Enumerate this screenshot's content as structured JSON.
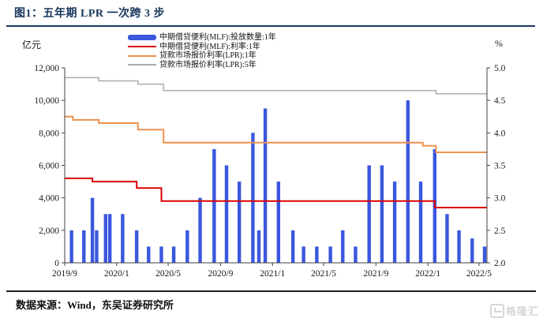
{
  "header": {
    "title": "图1：五年期 LPR 一次跨 3 步"
  },
  "footer": {
    "source": "数据来源：Wind，东吴证券研究所"
  },
  "watermark": {
    "text": "格隆汇",
    "icon": "glonghui-logo"
  },
  "colors": {
    "title_navy": "#17365d",
    "bar_blue": "#3a57de",
    "mlf_rate_red": "#dd0000",
    "lpr1y_orange": "#ee9150",
    "lpr5y_gray": "#ababab",
    "axis": "#404040"
  },
  "chart_data": {
    "type": "bar+step-line, dual axis",
    "left_axis": {
      "label": "亿元",
      "range": [
        0,
        12000
      ],
      "tick_labels": [
        "0",
        "2,000",
        "4,000",
        "6,000",
        "8,000",
        "10,000",
        "12,000"
      ],
      "tick_values": [
        0,
        2000,
        4000,
        6000,
        8000,
        10000,
        12000
      ]
    },
    "right_axis": {
      "label": "%",
      "range": [
        2.0,
        5.0
      ],
      "tick_labels": [
        "2.0",
        "2.5",
        "3.0",
        "3.5",
        "4.0",
        "4.5",
        "5.0"
      ],
      "tick_values": [
        2.0,
        2.5,
        3.0,
        3.5,
        4.0,
        4.5,
        5.0
      ]
    },
    "x_axis": {
      "start": "2019-09-01",
      "end": "2022-05-16",
      "tick_labels": [
        "2019/9",
        "2020/1",
        "2020/5",
        "2020/9",
        "2021/1",
        "2021/5",
        "2021/9",
        "2022/1",
        "2022/5"
      ],
      "tick_month_offsets": [
        0,
        4,
        8,
        12,
        16,
        20,
        24,
        28,
        32
      ]
    },
    "grid": "off",
    "legend_position": "top-center",
    "legend": [
      {
        "label": "中期借贷便利(MLF):投放数量:1年",
        "color": "#3a57de",
        "swatch": "bar"
      },
      {
        "label": "中期借贷便利(MLF):利率:1年",
        "color": "#dd0000",
        "swatch": "line"
      },
      {
        "label": "贷款市场报价利率(LPR):1年",
        "color": "#ee9150",
        "swatch": "line"
      },
      {
        "label": "贷款市场报价利率(LPR):5年",
        "color": "#ababab",
        "swatch": "line"
      }
    ],
    "bars": {
      "name": "中期借贷便利(MLF):投放数量:1年",
      "unit": "亿元",
      "axis": "left",
      "color": "#3a57de",
      "points": [
        [
          "2019-09-17",
          2000
        ],
        [
          "2019-10-16",
          2000
        ],
        [
          "2019-11-05",
          4000
        ],
        [
          "2019-11-15",
          2000
        ],
        [
          "2019-12-06",
          3000
        ],
        [
          "2019-12-16",
          3000
        ],
        [
          "2020-01-15",
          3000
        ],
        [
          "2020-02-17",
          2000
        ],
        [
          "2020-03-16",
          1000
        ],
        [
          "2020-04-15",
          1000
        ],
        [
          "2020-05-14",
          1000
        ],
        [
          "2020-06-15",
          2000
        ],
        [
          "2020-07-15",
          4000
        ],
        [
          "2020-08-17",
          7000
        ],
        [
          "2020-09-15",
          6000
        ],
        [
          "2020-10-15",
          5000
        ],
        [
          "2020-11-16",
          8000
        ],
        [
          "2020-11-30",
          2000
        ],
        [
          "2020-12-15",
          9500
        ],
        [
          "2021-01-15",
          5000
        ],
        [
          "2021-02-18",
          2000
        ],
        [
          "2021-03-15",
          1000
        ],
        [
          "2021-04-15",
          1000
        ],
        [
          "2021-05-17",
          1000
        ],
        [
          "2021-06-15",
          2000
        ],
        [
          "2021-07-15",
          1000
        ],
        [
          "2021-08-16",
          6000
        ],
        [
          "2021-09-15",
          6000
        ],
        [
          "2021-10-15",
          5000
        ],
        [
          "2021-11-15",
          10000
        ],
        [
          "2021-12-15",
          5000
        ],
        [
          "2022-01-17",
          7000
        ],
        [
          "2022-02-15",
          3000
        ],
        [
          "2022-03-15",
          2000
        ],
        [
          "2022-04-15",
          1500
        ],
        [
          "2022-05-16",
          1000
        ]
      ]
    },
    "lines": [
      {
        "name": "中期借贷便利(MLF):利率:1年",
        "unit": "%",
        "axis": "right",
        "color": "#dd0000",
        "width": 2,
        "steps": [
          [
            "2019-09-01",
            3.3
          ],
          [
            "2019-11-05",
            3.25
          ],
          [
            "2020-02-17",
            3.15
          ],
          [
            "2020-04-15",
            2.95
          ],
          [
            "2022-01-17",
            2.85
          ]
        ]
      },
      {
        "name": "贷款市场报价利率(LPR):1年",
        "unit": "%",
        "axis": "right",
        "color": "#ee9150",
        "width": 2,
        "steps": [
          [
            "2019-09-01",
            4.25
          ],
          [
            "2019-09-20",
            4.2
          ],
          [
            "2019-11-20",
            4.15
          ],
          [
            "2020-02-20",
            4.05
          ],
          [
            "2020-04-20",
            3.85
          ],
          [
            "2021-12-20",
            3.8
          ],
          [
            "2022-01-20",
            3.7
          ]
        ]
      },
      {
        "name": "贷款市场报价利率(LPR):5年",
        "unit": "%",
        "axis": "right",
        "color": "#ababab",
        "width": 1.5,
        "steps": [
          [
            "2019-09-01",
            4.85
          ],
          [
            "2019-11-20",
            4.8
          ],
          [
            "2020-02-20",
            4.75
          ],
          [
            "2020-04-20",
            4.65
          ],
          [
            "2022-01-20",
            4.6
          ]
        ]
      }
    ]
  }
}
